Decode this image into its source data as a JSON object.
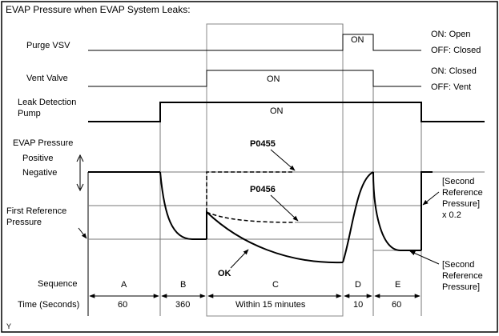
{
  "title": "EVAP Pressure when EVAP System Leaks:",
  "rows": {
    "purge_vsv": "Purge VSV",
    "vent_valve": "Vent Valve",
    "leak_pump_line1": "Leak Detection",
    "leak_pump_line2": "Pump",
    "evap_pressure": "EVAP Pressure",
    "positive": "Positive",
    "negative": "Negative",
    "first_ref_line1": "First Reference",
    "first_ref_line2": "Pressure"
  },
  "states": {
    "on": "ON",
    "purge_on": "ON: Open",
    "purge_off": "OFF: Closed",
    "vent_on": "ON: Closed",
    "vent_off": "OFF: Vent"
  },
  "codes": {
    "p0455": "P0455",
    "p0456": "P0456",
    "ok": "OK"
  },
  "second_ref_top": [
    "[Second",
    "Reference",
    "Pressure]",
    "x 0.2"
  ],
  "second_ref_bottom": [
    "[Second",
    "Reference",
    "Pressure]"
  ],
  "sequence_label": "Sequence",
  "time_label": "Time (Seconds)",
  "phases": [
    {
      "name": "A",
      "time": "60"
    },
    {
      "name": "B",
      "time": "360"
    },
    {
      "name": "C",
      "time": "Within 15 minutes"
    },
    {
      "name": "D",
      "time": "10"
    },
    {
      "name": "E",
      "time": "60"
    }
  ],
  "footer": "Y"
}
